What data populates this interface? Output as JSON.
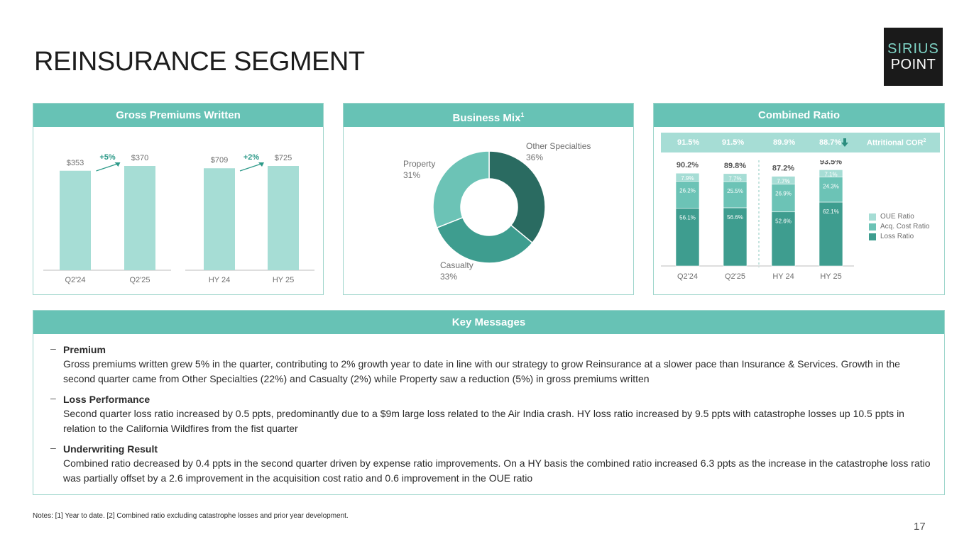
{
  "title": "REINSURANCE SEGMENT",
  "logo": {
    "line1": "SIRIUS",
    "line2": "POINT"
  },
  "gpw": {
    "header": "Gross Premiums Written",
    "bars": [
      {
        "category": "Q2'24",
        "label": "$353",
        "value": 353
      },
      {
        "category": "Q2'25",
        "label": "$370",
        "value": 370
      },
      {
        "category": "HY 24",
        "label": "$709",
        "value": 709
      },
      {
        "category": "HY 25",
        "label": "$725",
        "value": 725
      }
    ],
    "growth": [
      "+5%",
      "+2%"
    ],
    "bar_color": "#a6ddd5"
  },
  "mix": {
    "header": "Business Mix",
    "header_sup": "1",
    "slices": [
      {
        "name": "Other Specialties",
        "pct_label": "36%",
        "value": 36,
        "color": "#2a6b61"
      },
      {
        "name": "Casualty",
        "pct_label": "33%",
        "value": 33,
        "color": "#3e9d8f"
      },
      {
        "name": "Property",
        "pct_label": "31%",
        "value": 31,
        "color": "#6cc3b6"
      }
    ]
  },
  "cor": {
    "header": "Combined Ratio",
    "attritional": [
      "91.5%",
      "91.5%",
      "89.9%",
      "88.7%"
    ],
    "attritional_label": "Attritional COR",
    "attritional_sup": "2",
    "categories": [
      "Q2'24",
      "Q2'25",
      "HY 24",
      "HY 25"
    ],
    "totals": [
      "90.2%",
      "89.8%",
      "87.2%",
      "93.5%"
    ],
    "series": [
      {
        "name": "Loss Ratio",
        "values": [
          56.1,
          56.6,
          52.6,
          62.1
        ],
        "labels": [
          "56.1%",
          "56.6%",
          "52.6%",
          "62.1%"
        ],
        "color": "#3e9d8f"
      },
      {
        "name": "Acq. Cost Ratio",
        "values": [
          26.2,
          25.5,
          26.9,
          24.3
        ],
        "labels": [
          "26.2%",
          "25.5%",
          "26.9%",
          "24.3%"
        ],
        "color": "#6cc3b6"
      },
      {
        "name": "OUE Ratio",
        "values": [
          7.9,
          7.7,
          7.7,
          7.1
        ],
        "labels": [
          "7.9%",
          "7.7%",
          "7.7%",
          "7.1%"
        ],
        "color": "#a6ddd5"
      }
    ],
    "legend": [
      "OUE Ratio",
      "Acq. Cost Ratio",
      "Loss Ratio"
    ]
  },
  "key_messages": {
    "header": "Key Messages",
    "dash": "–",
    "items": [
      {
        "heading": "Premium",
        "text": "Gross premiums written grew 5% in the quarter, contributing to 2% growth year to date in line with our strategy to grow Reinsurance at a slower pace than Insurance & Services. Growth in the second quarter came from Other Specialties (22%) and Casualty (2%) while Property saw a reduction (5%) in gross premiums written"
      },
      {
        "heading": "Loss Performance",
        "text": "Second quarter loss ratio increased by 0.5 ppts, predominantly due to a $9m large loss related to the Air India crash. HY loss ratio increased by 9.5 ppts with catastrophe losses up 10.5 ppts in relation to the California Wildfires from the fist quarter"
      },
      {
        "heading": "Underwriting Result",
        "text": "Combined ratio decreased by 0.4 ppts in the second quarter driven by expense ratio improvements. On a HY basis the combined ratio increased 6.3 ppts as the increase in the catastrophe loss ratio was partially offset by a 2.6 improvement in the acquisition cost ratio and 0.6 improvement in the OUE ratio"
      }
    ]
  },
  "notes": "Notes: [1] Year to date. [2] Combined ratio excluding catastrophe losses and prior year development.",
  "page_number": "17"
}
